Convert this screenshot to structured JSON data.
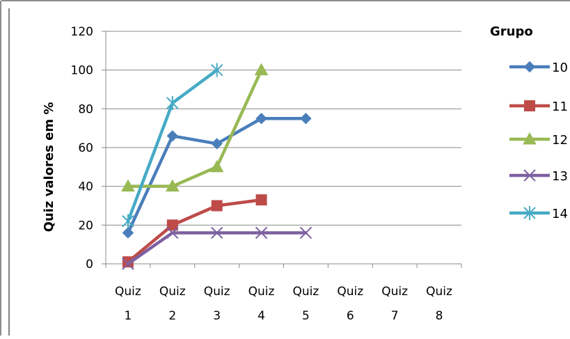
{
  "chart_data": {
    "type": "line",
    "title": "",
    "xlabel": "",
    "ylabel": "Quiz valores em %",
    "ylim": [
      0,
      120
    ],
    "yticks": [
      0,
      20,
      40,
      60,
      80,
      100,
      120
    ],
    "categories": [
      {
        "line1": "Quiz",
        "line2": "1"
      },
      {
        "line1": "Quiz",
        "line2": "2"
      },
      {
        "line1": "Quiz",
        "line2": "3"
      },
      {
        "line1": "Quiz",
        "line2": "4"
      },
      {
        "line1": "Quiz",
        "line2": "5"
      },
      {
        "line1": "Quiz",
        "line2": "6"
      },
      {
        "line1": "Quiz",
        "line2": "7"
      },
      {
        "line1": "Quiz",
        "line2": "8"
      }
    ],
    "grid": true,
    "legend": {
      "title": "Grupo",
      "placement": "right"
    },
    "series": [
      {
        "name": "10",
        "color": "#4a7ebb",
        "marker": "diamond",
        "values": [
          16,
          66,
          62,
          75,
          75,
          null,
          null,
          null
        ]
      },
      {
        "name": "11",
        "color": "#be4b48",
        "marker": "square",
        "values": [
          1,
          20,
          30,
          33,
          null,
          null,
          null,
          null
        ]
      },
      {
        "name": "12",
        "color": "#98b954",
        "marker": "triangle",
        "values": [
          40,
          40,
          50,
          100,
          null,
          null,
          null,
          null
        ]
      },
      {
        "name": "13",
        "color": "#7d60a0",
        "marker": "x",
        "values": [
          0,
          16,
          16,
          16,
          16,
          null,
          null,
          null
        ]
      },
      {
        "name": "14",
        "color": "#46aac5",
        "marker": "star",
        "values": [
          22,
          83,
          100,
          null,
          null,
          null,
          null,
          null
        ]
      }
    ]
  }
}
